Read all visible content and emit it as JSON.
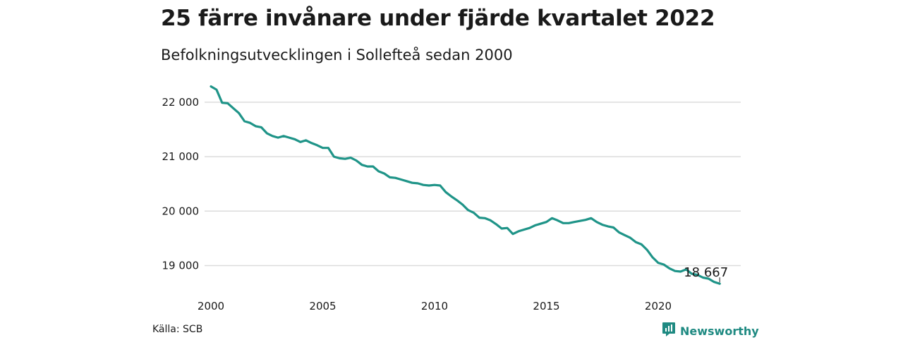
{
  "header": {
    "title": "25 färre invånare under fjärde kvartalet 2022",
    "subtitle": "Befolkningsutvecklingen i Sollefteå sedan 2000"
  },
  "footer": {
    "source": "Källa: SCB",
    "brand": "Newsworthy",
    "brand_icon": "newsworthy-logo-icon"
  },
  "colors": {
    "line": "#1f9488",
    "grid": "#dcdcdc",
    "brand": "#1f8a82"
  },
  "chart_data": {
    "type": "line",
    "title": "25 färre invånare under fjärde kvartalet 2022",
    "subtitle": "Befolkningsutvecklingen i Sollefteå sedan 2000",
    "xlabel": "",
    "ylabel": "",
    "x_ticks": [
      "2000",
      "2005",
      "2010",
      "2015",
      "2020"
    ],
    "y_ticks": [
      "19 000",
      "20 000",
      "21 000",
      "22 000"
    ],
    "y_tick_values": [
      19000,
      20000,
      21000,
      22000
    ],
    "xlim": [
      "2000-Q1",
      "2022-Q4"
    ],
    "ylim": [
      18550,
      22600
    ],
    "grid": "horizontal",
    "end_label": "18 667",
    "series": [
      {
        "x": [
          "2000-Q1",
          "2000-Q2",
          "2000-Q3",
          "2000-Q4",
          "2001-Q1",
          "2001-Q2",
          "2001-Q3",
          "2001-Q4",
          "2002-Q1",
          "2002-Q2",
          "2002-Q3",
          "2002-Q4",
          "2003-Q1",
          "2003-Q2",
          "2003-Q3",
          "2003-Q4",
          "2004-Q1",
          "2004-Q2",
          "2004-Q3",
          "2004-Q4",
          "2005-Q1",
          "2005-Q2",
          "2005-Q3",
          "2005-Q4",
          "2006-Q1",
          "2006-Q2",
          "2006-Q3",
          "2006-Q4",
          "2007-Q1",
          "2007-Q2",
          "2007-Q3",
          "2007-Q4",
          "2008-Q1",
          "2008-Q2",
          "2008-Q3",
          "2008-Q4",
          "2009-Q1",
          "2009-Q2",
          "2009-Q3",
          "2009-Q4",
          "2010-Q1",
          "2010-Q2",
          "2010-Q3",
          "2010-Q4",
          "2011-Q1",
          "2011-Q2",
          "2011-Q3",
          "2011-Q4",
          "2012-Q1",
          "2012-Q2",
          "2012-Q3",
          "2012-Q4",
          "2013-Q1",
          "2013-Q2",
          "2013-Q3",
          "2013-Q4",
          "2014-Q1",
          "2014-Q2",
          "2014-Q3",
          "2014-Q4",
          "2015-Q1",
          "2015-Q2",
          "2015-Q3",
          "2015-Q4",
          "2016-Q1",
          "2016-Q2",
          "2016-Q3",
          "2016-Q4",
          "2017-Q1",
          "2017-Q2",
          "2017-Q3",
          "2017-Q4",
          "2018-Q1",
          "2018-Q2",
          "2018-Q3",
          "2018-Q4",
          "2019-Q1",
          "2019-Q2",
          "2019-Q3",
          "2019-Q4",
          "2020-Q1",
          "2020-Q2",
          "2020-Q3",
          "2020-Q4",
          "2021-Q1",
          "2021-Q2",
          "2021-Q3",
          "2021-Q4",
          "2022-Q1",
          "2022-Q2",
          "2022-Q3",
          "2022-Q4"
        ],
        "values": [
          22290,
          22230,
          21990,
          21980,
          21890,
          21800,
          21650,
          21620,
          21560,
          21540,
          21430,
          21380,
          21350,
          21380,
          21350,
          21320,
          21270,
          21300,
          21250,
          21210,
          21160,
          21160,
          21000,
          20970,
          20960,
          20980,
          20930,
          20850,
          20820,
          20820,
          20730,
          20690,
          20620,
          20610,
          20580,
          20550,
          20520,
          20510,
          20480,
          20470,
          20480,
          20470,
          20350,
          20270,
          20200,
          20120,
          20020,
          19970,
          19880,
          19870,
          19830,
          19760,
          19680,
          19690,
          19580,
          19630,
          19660,
          19690,
          19740,
          19770,
          19800,
          19870,
          19830,
          19780,
          19780,
          19800,
          19820,
          19840,
          19870,
          19800,
          19750,
          19720,
          19700,
          19610,
          19560,
          19510,
          19430,
          19390,
          19290,
          19150,
          19050,
          19020,
          18950,
          18900,
          18890,
          18930,
          18850,
          18830,
          18780,
          18760,
          18700,
          18667
        ]
      }
    ]
  }
}
